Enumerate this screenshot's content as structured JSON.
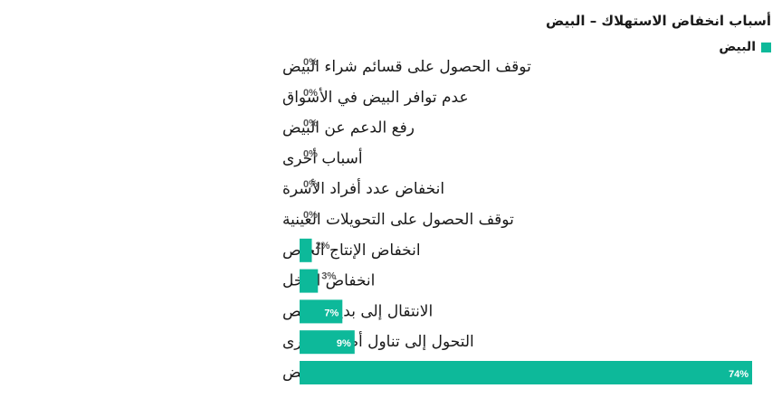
{
  "chart_data": {
    "type": "bar",
    "orientation": "horizontal",
    "title": "أسباب انخفاض الاستهلاك – البيض",
    "legend": {
      "position": "top-right"
    },
    "series": [
      {
        "name": "البيض",
        "color": "#0db99a",
        "values": [
          0,
          0,
          0,
          0,
          0,
          0,
          2,
          3,
          7,
          9,
          74
        ]
      }
    ],
    "categories": [
      "توقف الحصول على قسائم شراء البيض",
      "عدم توافر البيض في الأسواق",
      "رفع الدعم عن البيض",
      "أسباب أخرى",
      "انخفاض عدد أفراد الأسرة",
      "توقف الحصول على التحويلات العينية",
      "انخفاض الإنتاج الخاص",
      "انخفاض الدخل",
      "الانتقال إلى بديل أرخص",
      "التحول إلى تناول أطعمة أخرى",
      "ارتفاع أسعار البيض"
    ],
    "value_labels": [
      "0%",
      "0%",
      "0%",
      "0%",
      "0%",
      "0%",
      "2%",
      "3%",
      "7%",
      "9%",
      "74%"
    ],
    "xlim": [
      0,
      74
    ],
    "grid": false,
    "outside_label_color": "#555555",
    "inside_label_color": "#ffffff"
  }
}
